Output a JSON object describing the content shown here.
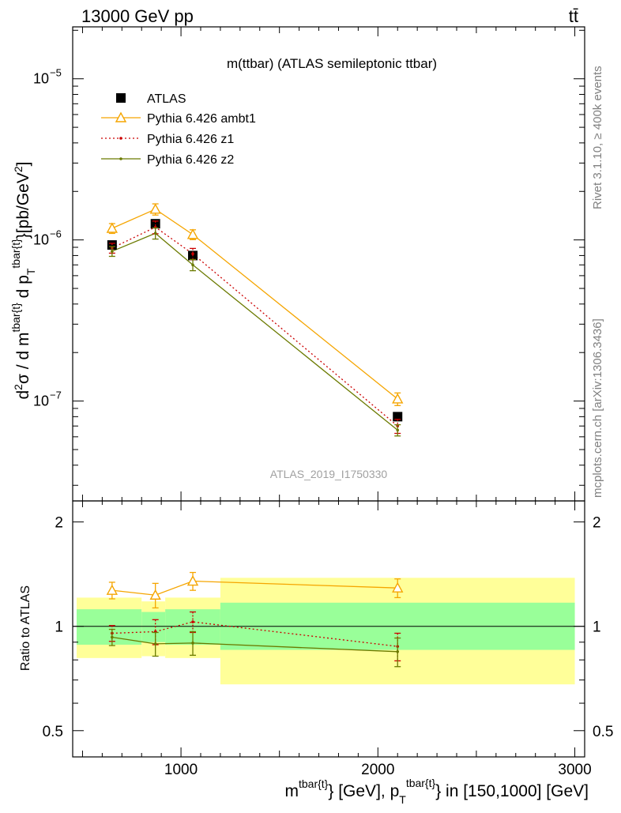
{
  "header": {
    "left": "13000 GeV pp",
    "right": "tt̄"
  },
  "side_text": {
    "rivet": "Rivet 3.1.10, ≥ 400k events",
    "mcplots": "mcplots.cern.ch [arXiv:1306.3436]"
  },
  "chart_data": {
    "type": "line",
    "title": "m(ttbar) (ATLAS semileptonic ttbar)",
    "watermark": "ATLAS_2019_I1750330",
    "ylabel_main": "d²σ / d m^{tbar{t}} d p_T^{tbar{t}} [pb/GeV²]",
    "ylabel_ratio": "Ratio to ATLAS",
    "xlabel": "m^{tbar{t}} [GeV], p_T^{tbar{t}} in [150,1000] [GeV]",
    "xlim": [
      450,
      3050
    ],
    "ylim_main": [
      2.4e-08,
      2.1e-05
    ],
    "ylim_ratio": [
      0.42,
      2.3
    ],
    "x_ticks": [
      1000,
      2000,
      3000
    ],
    "main_ticks": [
      {
        "value": 1e-07,
        "label": "10",
        "exp": "−7"
      },
      {
        "value": 1e-06,
        "label": "10",
        "exp": "−6"
      },
      {
        "value": 1e-05,
        "label": "10",
        "exp": "−5"
      }
    ],
    "ratio_ticks": [
      {
        "value": 0.5,
        "label": "0.5"
      },
      {
        "value": 1,
        "label": "1"
      },
      {
        "value": 2,
        "label": "2"
      }
    ],
    "bins": [
      {
        "lo": 470,
        "hi": 800,
        "band_inner": [
          0.885,
          1.12
        ],
        "band_outer": [
          0.81,
          1.21
        ]
      },
      {
        "lo": 800,
        "hi": 920,
        "band_inner": [
          0.9,
          1.1
        ],
        "band_outer": [
          0.82,
          1.18
        ]
      },
      {
        "lo": 920,
        "hi": 1200,
        "band_inner": [
          0.885,
          1.12
        ],
        "band_outer": [
          0.81,
          1.21
        ]
      },
      {
        "lo": 1200,
        "hi": 3000,
        "band_inner": [
          0.855,
          1.17
        ],
        "band_outer": [
          0.68,
          1.38
        ]
      }
    ],
    "series": [
      {
        "name": "ATLAS",
        "style": "data",
        "color": "#000000",
        "x": [
          650,
          870,
          1060,
          2100
        ],
        "y": [
          9.3e-07,
          1.26e-06,
          8e-07,
          8e-08
        ],
        "ratio": [
          1,
          1,
          1,
          1
        ]
      },
      {
        "name": "Pythia 6.426 ambt1",
        "style": "triangle",
        "color": "#f5a500",
        "x": [
          650,
          870,
          1060,
          2100
        ],
        "y": [
          1.18e-06,
          1.55e-06,
          1.08e-06,
          1.03e-07
        ],
        "yerr_frac": [
          0.07,
          0.08,
          0.07,
          0.09
        ],
        "ratio": [
          1.27,
          1.23,
          1.35,
          1.29
        ],
        "ratio_err": [
          0.07,
          0.1,
          0.08,
          0.08
        ]
      },
      {
        "name": "Pythia 6.426 z1",
        "style": "dotted",
        "color": "#cc0000",
        "x": [
          650,
          870,
          1060,
          2100
        ],
        "y": [
          8.9e-07,
          1.2e-06,
          8.2e-07,
          7e-08
        ],
        "yerr_frac": [
          0.07,
          0.09,
          0.08,
          0.1
        ],
        "ratio": [
          0.955,
          0.965,
          1.03,
          0.875
        ],
        "ratio_err": [
          0.05,
          0.08,
          0.07,
          0.08
        ]
      },
      {
        "name": "Pythia 6.426 z2",
        "style": "small-dot",
        "color": "#6b7a00",
        "x": [
          650,
          870,
          1060,
          2100
        ],
        "y": [
          8.5e-07,
          1.1e-06,
          7e-07,
          6.6e-08
        ],
        "yerr_frac": [
          0.07,
          0.08,
          0.08,
          0.08
        ],
        "ratio": [
          0.93,
          0.89,
          0.895,
          0.845
        ],
        "ratio_err": [
          0.05,
          0.07,
          0.07,
          0.08
        ]
      }
    ]
  }
}
